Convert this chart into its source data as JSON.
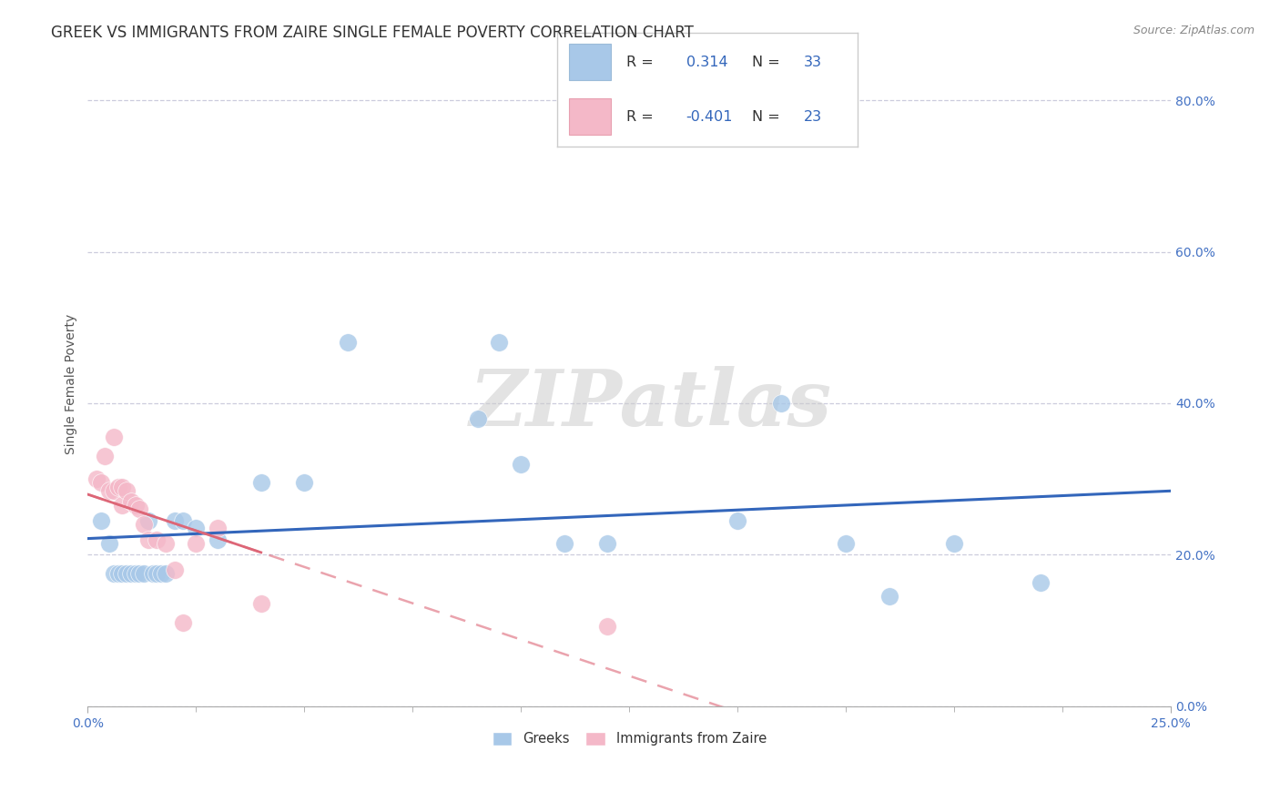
{
  "title": "GREEK VS IMMIGRANTS FROM ZAIRE SINGLE FEMALE POVERTY CORRELATION CHART",
  "source": "Source: ZipAtlas.com",
  "ylabel": "Single Female Poverty",
  "xlim": [
    0.0,
    0.25
  ],
  "ylim": [
    0.0,
    0.85
  ],
  "xticks_pos": [
    0.0,
    0.25
  ],
  "xtick_labels": [
    "0.0%",
    "25.0%"
  ],
  "yticks_pos": [
    0.0,
    0.2,
    0.4,
    0.6,
    0.8
  ],
  "ytick_labels": [
    "0.0%",
    "20.0%",
    "40.0%",
    "60.0%",
    "80.0%"
  ],
  "background_color": "#ffffff",
  "grid_color": "#ccccdd",
  "watermark_text": "ZIPatlas",
  "greek_color": "#a8c8e8",
  "zaire_color": "#f4b8c8",
  "greek_line_color": "#3366bb",
  "zaire_line_color": "#dd6677",
  "stat_color": "#3366bb",
  "axis_tick_color": "#4472c4",
  "greek_x": [
    0.003,
    0.005,
    0.006,
    0.007,
    0.008,
    0.009,
    0.01,
    0.011,
    0.012,
    0.013,
    0.014,
    0.015,
    0.016,
    0.017,
    0.018,
    0.02,
    0.022,
    0.025,
    0.03,
    0.04,
    0.05,
    0.06,
    0.09,
    0.095,
    0.1,
    0.11,
    0.12,
    0.15,
    0.16,
    0.175,
    0.185,
    0.2,
    0.22
  ],
  "greek_y": [
    0.245,
    0.215,
    0.175,
    0.175,
    0.175,
    0.175,
    0.175,
    0.175,
    0.175,
    0.175,
    0.245,
    0.175,
    0.175,
    0.175,
    0.175,
    0.245,
    0.245,
    0.235,
    0.22,
    0.295,
    0.295,
    0.48,
    0.38,
    0.48,
    0.32,
    0.215,
    0.215,
    0.245,
    0.4,
    0.215,
    0.145,
    0.215,
    0.163
  ],
  "zaire_x": [
    0.002,
    0.003,
    0.004,
    0.005,
    0.006,
    0.006,
    0.007,
    0.008,
    0.008,
    0.009,
    0.01,
    0.011,
    0.012,
    0.013,
    0.014,
    0.016,
    0.018,
    0.02,
    0.022,
    0.025,
    0.03,
    0.04,
    0.12
  ],
  "zaire_y": [
    0.3,
    0.295,
    0.33,
    0.285,
    0.285,
    0.355,
    0.29,
    0.29,
    0.265,
    0.285,
    0.27,
    0.265,
    0.26,
    0.24,
    0.22,
    0.22,
    0.215,
    0.18,
    0.11,
    0.215,
    0.235,
    0.135,
    0.105
  ],
  "legend_label1": "Greeks",
  "legend_label2": "Immigrants from Zaire",
  "title_fontsize": 12,
  "tick_fontsize": 10,
  "label_fontsize": 10
}
